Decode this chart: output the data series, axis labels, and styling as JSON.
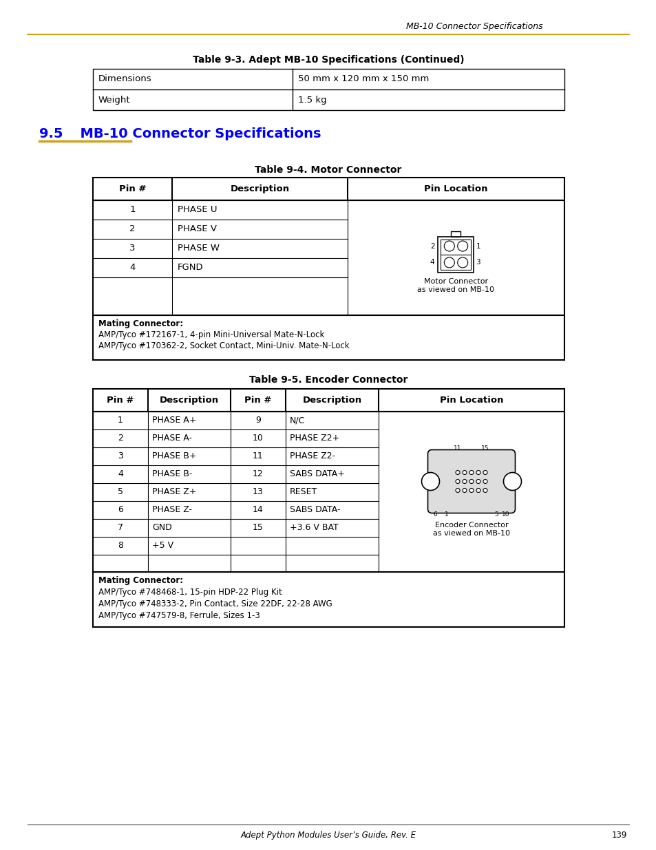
{
  "page_header_text": "MB-10 Connector Specifications",
  "header_line_color": "#D4A017",
  "section_title_num": "9.5",
  "section_title_rest": "   MB-10 Connector Specifications",
  "section_title_color": "#0000FF",
  "section_underline_color": "#D4A017",
  "table1_title": "Table 9-3. Adept MB-10 Specifications (Continued)",
  "table1_rows": [
    [
      "Dimensions",
      "50 mm x 120 mm x 150 mm"
    ],
    [
      "Weight",
      "1.5 kg"
    ]
  ],
  "table2_title": "Table 9-4. Motor Connector",
  "table2_rows": [
    [
      "1",
      "PHASE U"
    ],
    [
      "2",
      "PHASE V"
    ],
    [
      "3",
      "PHASE W"
    ],
    [
      "4",
      "FGND"
    ]
  ],
  "table2_mating": "Mating Connector:\nAMP/Tyco #172167-1, 4-pin Mini-Universal Mate-N-Lock\nAMP/Tyco #170362-2, Socket Contact, Mini-Univ. Mate-N-Lock",
  "table3_title": "Table 9-5. Encoder Connector",
  "table3_left_rows": [
    [
      "1",
      "PHASE A+"
    ],
    [
      "2",
      "PHASE A-"
    ],
    [
      "3",
      "PHASE B+"
    ],
    [
      "4",
      "PHASE B-"
    ],
    [
      "5",
      "PHASE Z+"
    ],
    [
      "6",
      "PHASE Z-"
    ],
    [
      "7",
      "GND"
    ],
    [
      "8",
      "+5 V"
    ]
  ],
  "table3_right_rows": [
    [
      "9",
      "N/C"
    ],
    [
      "10",
      "PHASE Z2+"
    ],
    [
      "11",
      "PHASE Z2-"
    ],
    [
      "12",
      "SABS DATA+"
    ],
    [
      "13",
      "RESET"
    ],
    [
      "14",
      "SABS DATA-"
    ],
    [
      "15",
      "+3.6 V BAT"
    ],
    [
      "",
      ""
    ]
  ],
  "table3_mating": "Mating Connector:\nAMP/Tyco #748468-1, 15-pin HDP-22 Plug Kit\nAMP/Tyco #748333-2, Pin Contact, Size 22DF, 22-28 AWG\nAMP/Tyco #747579-8, Ferrule, Sizes 1-3",
  "footer_text": "Adept Python Modules User’s Guide, Rev. E",
  "footer_page": "139",
  "bg_color": "#FFFFFF"
}
